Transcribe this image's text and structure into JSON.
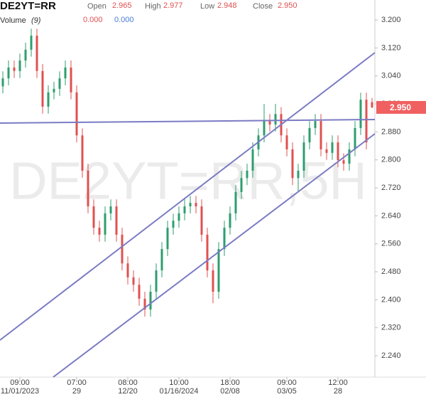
{
  "chart_data": {
    "type": "candlestick",
    "title": "DE2YT=RR",
    "watermark": "DE2YT=RR,5H",
    "legend_labels": {
      "open": "Open",
      "high": "High",
      "low": "Low",
      "close": "Close"
    },
    "last_value_labels": {
      "open": "2.965",
      "high": "2.977",
      "low": "2.948",
      "close": "2.950"
    },
    "volume": {
      "name": "Volume",
      "period": "(9)",
      "values": [
        0,
        0
      ],
      "value_labels": [
        "0.000",
        "0.000"
      ],
      "colors": [
        "#e05050",
        "#4a7fd6"
      ]
    },
    "up_color": "#2e9e6e",
    "down_color": "#e05050",
    "last_price_color": "#f06060",
    "ylim": [
      2.179,
      3.257
    ],
    "yticks": [
      {
        "value": 2.24,
        "label": "2.240"
      },
      {
        "value": 2.32,
        "label": "2.320"
      },
      {
        "value": 2.4,
        "label": "2.400"
      },
      {
        "value": 2.48,
        "label": "2.480"
      },
      {
        "value": 2.56,
        "label": "2.560"
      },
      {
        "value": 2.64,
        "label": "2.640"
      },
      {
        "value": 2.72,
        "label": "2.720"
      },
      {
        "value": 2.8,
        "label": "2.800"
      },
      {
        "value": 2.88,
        "label": "2.880"
      },
      {
        "value": 2.96,
        "label": "2.960"
      },
      {
        "value": 3.04,
        "label": "3.040"
      },
      {
        "value": 3.12,
        "label": "3.120"
      },
      {
        "value": 3.2,
        "label": "3.200"
      }
    ],
    "categories": [
      null,
      null,
      null,
      {
        "time": "09:00",
        "date": "11/01/2023"
      },
      null,
      null,
      null,
      null,
      null,
      null,
      null,
      null,
      null,
      {
        "time": "07:00",
        "date": "29"
      },
      null,
      null,
      null,
      null,
      null,
      null,
      null,
      null,
      {
        "time": "08:00",
        "date": "12/20"
      },
      null,
      null,
      null,
      null,
      null,
      null,
      null,
      null,
      {
        "time": "10:00",
        "date": "01/16/2024"
      },
      null,
      null,
      null,
      null,
      null,
      null,
      null,
      null,
      {
        "time": "18:00",
        "date": "02/08"
      },
      null,
      null,
      null,
      null,
      null,
      null,
      null,
      null,
      null,
      {
        "time": "09:00",
        "date": "03/05"
      },
      null,
      null,
      null,
      null,
      null,
      null,
      null,
      null,
      {
        "time": "12:00",
        "date": "28"
      },
      null,
      null,
      null,
      null,
      null,
      null
    ],
    "open": [
      3.01,
      3.033,
      3.064,
      3.054,
      3.084,
      3.115,
      3.155,
      3.054,
      2.952,
      2.993,
      3.003,
      3.033,
      3.064,
      2.993,
      2.87,
      2.769,
      2.667,
      2.606,
      2.586,
      2.647,
      2.667,
      2.586,
      2.504,
      2.464,
      2.443,
      2.403,
      2.372,
      2.423,
      2.484,
      2.545,
      2.606,
      2.626,
      2.647,
      2.667,
      2.677,
      2.667,
      2.586,
      2.484,
      2.423,
      2.545,
      2.606,
      2.647,
      2.708,
      2.748,
      2.769,
      2.83,
      2.87,
      2.911,
      2.901,
      2.931,
      2.87,
      2.83,
      2.748,
      2.769,
      2.85,
      2.891,
      2.911,
      2.83,
      2.82,
      2.85,
      2.799,
      2.789,
      2.83,
      2.891,
      2.972,
      2.965
    ],
    "high": [
      3.053,
      3.084,
      3.084,
      3.104,
      3.135,
      3.175,
      3.175,
      3.074,
      3.013,
      3.023,
      3.053,
      3.084,
      3.084,
      3.013,
      2.89,
      2.789,
      2.687,
      2.626,
      2.667,
      2.687,
      2.687,
      2.606,
      2.524,
      2.484,
      2.463,
      2.423,
      2.443,
      2.504,
      2.565,
      2.626,
      2.646,
      2.667,
      2.687,
      2.697,
      2.697,
      2.687,
      2.606,
      2.504,
      2.565,
      2.626,
      2.667,
      2.728,
      2.768,
      2.789,
      2.85,
      2.89,
      2.96,
      2.931,
      2.96,
      2.951,
      2.89,
      2.85,
      2.789,
      2.87,
      2.911,
      2.931,
      2.931,
      2.85,
      2.87,
      2.87,
      2.819,
      2.85,
      2.911,
      2.992,
      2.992,
      2.977
    ],
    "low": [
      2.99,
      3.013,
      3.034,
      3.034,
      3.064,
      3.095,
      3.034,
      2.932,
      2.932,
      2.973,
      2.983,
      3.013,
      2.973,
      2.85,
      2.749,
      2.647,
      2.586,
      2.566,
      2.566,
      2.627,
      2.566,
      2.484,
      2.444,
      2.423,
      2.383,
      2.352,
      2.352,
      2.403,
      2.464,
      2.525,
      2.586,
      2.606,
      2.627,
      2.647,
      2.647,
      2.566,
      2.464,
      2.39,
      2.403,
      2.525,
      2.586,
      2.627,
      2.688,
      2.728,
      2.749,
      2.81,
      2.85,
      2.881,
      2.881,
      2.85,
      2.81,
      2.728,
      2.71,
      2.749,
      2.83,
      2.871,
      2.81,
      2.8,
      2.8,
      2.779,
      2.769,
      2.769,
      2.81,
      2.871,
      2.83,
      2.948
    ],
    "close": [
      3.033,
      3.064,
      3.054,
      3.084,
      3.115,
      3.155,
      3.054,
      2.952,
      2.993,
      3.003,
      3.033,
      3.064,
      2.993,
      2.87,
      2.769,
      2.667,
      2.606,
      2.586,
      2.647,
      2.667,
      2.586,
      2.504,
      2.464,
      2.443,
      2.403,
      2.372,
      2.423,
      2.484,
      2.545,
      2.606,
      2.626,
      2.647,
      2.667,
      2.677,
      2.667,
      2.586,
      2.484,
      2.423,
      2.545,
      2.606,
      2.647,
      2.708,
      2.748,
      2.769,
      2.83,
      2.87,
      2.911,
      2.901,
      2.931,
      2.87,
      2.83,
      2.748,
      2.769,
      2.85,
      2.891,
      2.911,
      2.83,
      2.82,
      2.85,
      2.799,
      2.789,
      2.83,
      2.891,
      2.972,
      2.85,
      2.95
    ]
  }
}
